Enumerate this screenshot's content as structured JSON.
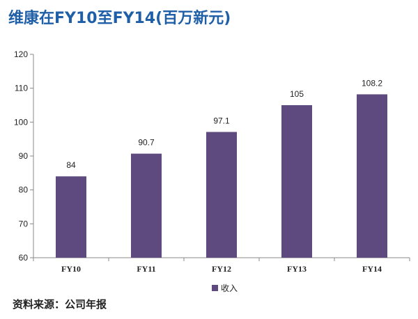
{
  "title": "维康在FY10至FY14(百万新元)",
  "source": "资料来源：公司年报",
  "colors": {
    "bar": "#5e4a7e",
    "title": "#1f5fa8",
    "axis": "#888888"
  },
  "chart_data": {
    "type": "bar",
    "categories": [
      "FY10",
      "FY11",
      "FY12",
      "FY13",
      "FY14"
    ],
    "series": [
      {
        "name": "收入",
        "values": [
          84,
          90.7,
          97.1,
          105,
          108.2
        ]
      }
    ],
    "data_labels": [
      "84",
      "90.7",
      "97.1",
      "105",
      "108.2"
    ],
    "y_ticks": [
      60,
      70,
      80,
      90,
      100,
      110,
      120
    ],
    "ylim": [
      60,
      120
    ],
    "grid": false,
    "legend_position": "bottom"
  }
}
